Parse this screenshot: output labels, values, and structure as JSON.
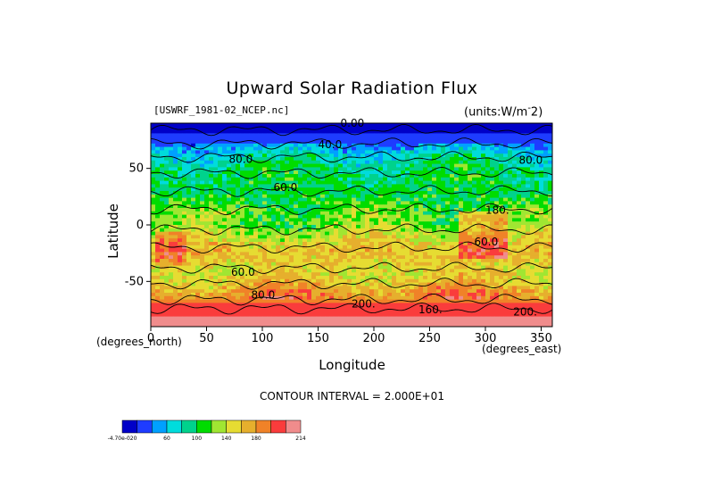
{
  "chart_data": {
    "type": "heatmap",
    "title": "Upward Solar Radiation Flux",
    "dataset_label": "[USWRF_1981-02_NCEP.nc]",
    "units_label": "(units:W/m^2)",
    "xlabel": "Longitude",
    "xlabel_unit": "(degrees_east)",
    "ylabel": "Latitude",
    "ylabel_unit": "(degrees_north)",
    "xlim": [
      0,
      360
    ],
    "ylim": [
      -90,
      90
    ],
    "x_ticks": [
      0,
      50,
      100,
      150,
      200,
      250,
      300,
      350
    ],
    "y_ticks": [
      50,
      0,
      -50
    ],
    "contour_interval_label": "CONTOUR INTERVAL = 2.000E+01",
    "colorbar": {
      "tick_labels": [
        "-4.70e-020",
        "60",
        "100",
        "140",
        "180",
        "214"
      ],
      "colors": [
        "#0000c8",
        "#1e3cff",
        "#00a0ff",
        "#00dcdc",
        "#00d28c",
        "#00dc00",
        "#a0e632",
        "#e6dc32",
        "#e6af2d",
        "#f08228",
        "#fa3c3c",
        "#f08c8c"
      ]
    },
    "contour_labels": [
      "0.00",
      "40.0",
      "80.0",
      "80.0",
      "60.0",
      "60.0",
      "60.0",
      "80.0",
      "180.",
      "200.",
      "160.",
      "200."
    ],
    "latitude_profile": [
      {
        "lat": 90,
        "value": 5
      },
      {
        "lat": 80,
        "value": 20
      },
      {
        "lat": 70,
        "value": 50
      },
      {
        "lat": 60,
        "value": 80
      },
      {
        "lat": 50,
        "value": 95
      },
      {
        "lat": 40,
        "value": 100
      },
      {
        "lat": 30,
        "value": 100
      },
      {
        "lat": 20,
        "value": 110
      },
      {
        "lat": 10,
        "value": 120
      },
      {
        "lat": 0,
        "value": 120
      },
      {
        "lat": -10,
        "value": 140
      },
      {
        "lat": -20,
        "value": 160
      },
      {
        "lat": -30,
        "value": 160
      },
      {
        "lat": -40,
        "value": 150
      },
      {
        "lat": -50,
        "value": 160
      },
      {
        "lat": -60,
        "value": 180
      },
      {
        "lat": -70,
        "value": 200
      },
      {
        "lat": -80,
        "value": 214
      },
      {
        "lat": -90,
        "value": 214
      }
    ],
    "grid": false
  }
}
